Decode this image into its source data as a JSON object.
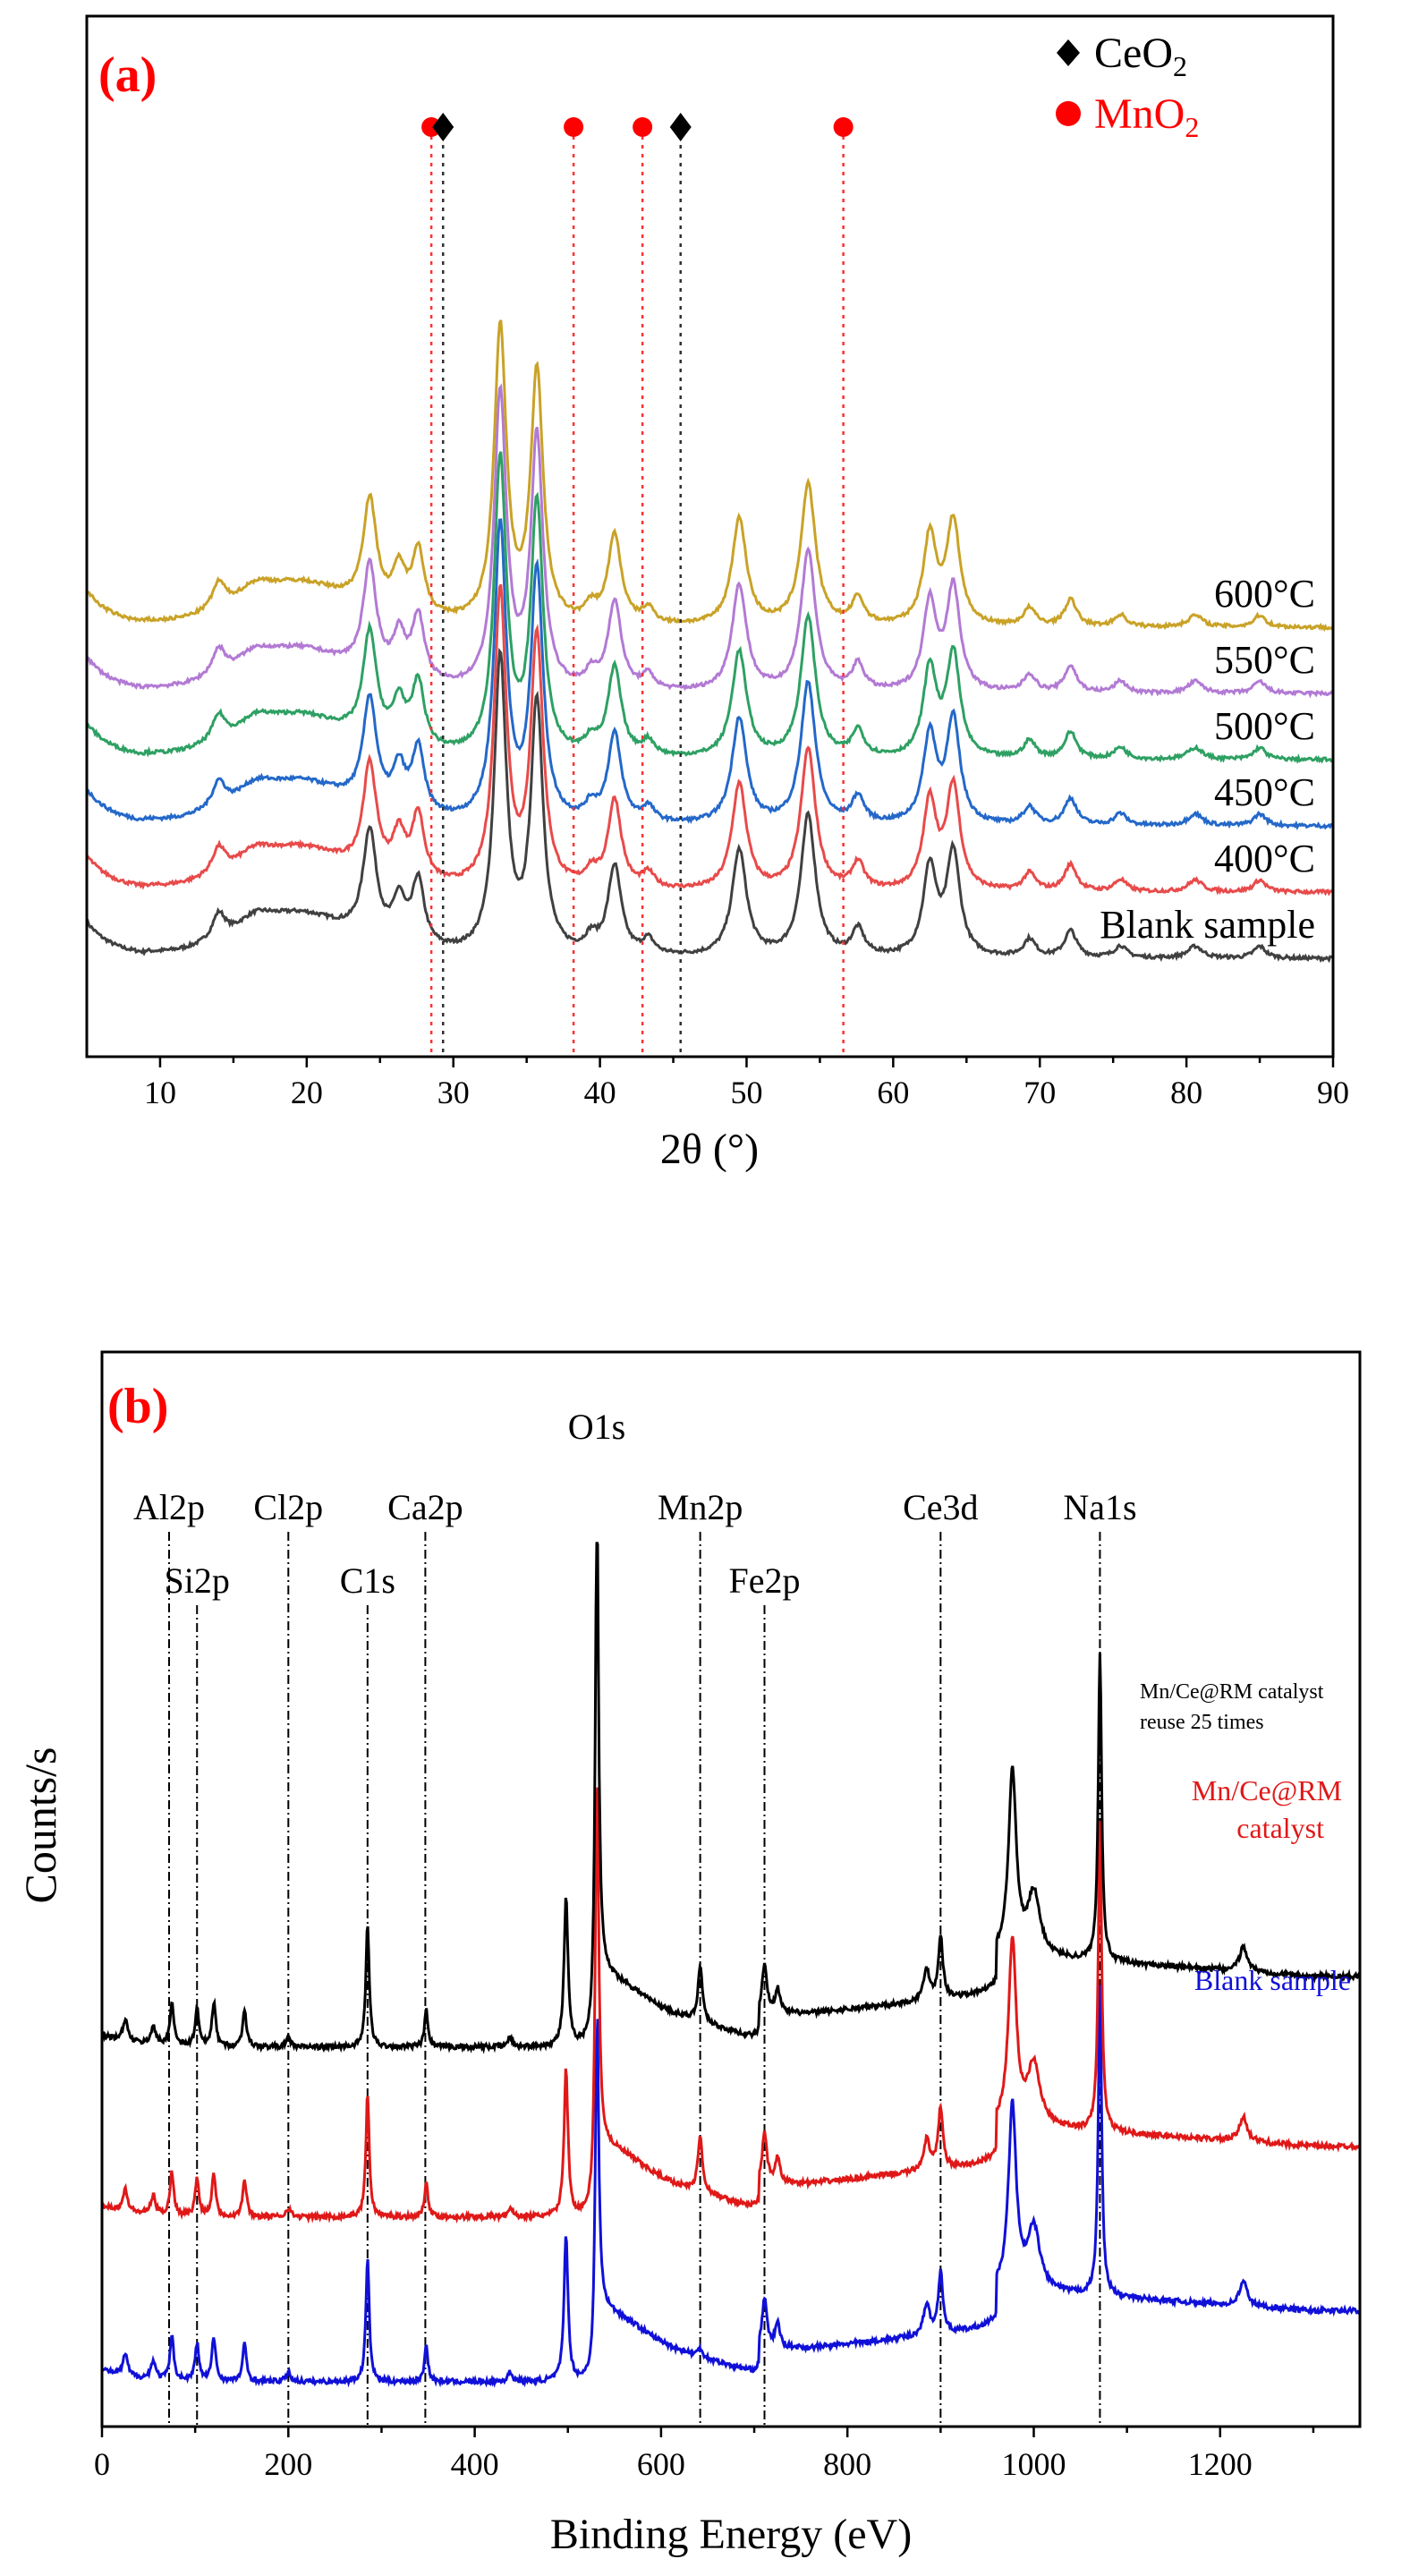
{
  "chart_data": [
    {
      "type": "line",
      "panel_label": "(a)",
      "xlabel": "2θ (°)",
      "ylabel": "",
      "xlim": [
        5,
        90
      ],
      "xticks": [
        10,
        20,
        30,
        40,
        50,
        60,
        70,
        80,
        90
      ],
      "legend": {
        "placement": "top-right",
        "entries": [
          {
            "marker": "diamond",
            "label_main": "CeO",
            "label_sub": "2",
            "color": "#000000"
          },
          {
            "marker": "circle",
            "label_main": "MnO",
            "label_sub": "2",
            "color": "#ff0000"
          }
        ]
      },
      "reference_lines": {
        "CeO2": [
          29.3,
          45.5
        ],
        "MnO2": [
          28.5,
          38.2,
          42.9,
          56.6
        ]
      },
      "peaks": [
        {
          "x": 14.0,
          "h": 0.09,
          "w": 0.55
        },
        {
          "x": 16.5,
          "h": 0.06,
          "w": 1.6
        },
        {
          "x": 19.5,
          "h": 0.06,
          "w": 3.2
        },
        {
          "x": 24.3,
          "h": 0.36,
          "w": 0.55
        },
        {
          "x": 26.3,
          "h": 0.14,
          "w": 0.5
        },
        {
          "x": 27.6,
          "h": 0.22,
          "w": 0.5
        },
        {
          "x": 33.2,
          "h": 1.0,
          "w": 0.5
        },
        {
          "x": 35.7,
          "h": 0.85,
          "w": 0.5
        },
        {
          "x": 39.4,
          "h": 0.05,
          "w": 0.5
        },
        {
          "x": 41.0,
          "h": 0.3,
          "w": 0.55
        },
        {
          "x": 43.3,
          "h": 0.05,
          "w": 0.5
        },
        {
          "x": 49.5,
          "h": 0.36,
          "w": 0.6
        },
        {
          "x": 54.2,
          "h": 0.48,
          "w": 0.6
        },
        {
          "x": 57.6,
          "h": 0.09,
          "w": 0.5
        },
        {
          "x": 62.5,
          "h": 0.3,
          "w": 0.55
        },
        {
          "x": 64.1,
          "h": 0.35,
          "w": 0.55
        },
        {
          "x": 69.3,
          "h": 0.06,
          "w": 0.5
        },
        {
          "x": 72.1,
          "h": 0.09,
          "w": 0.5
        },
        {
          "x": 75.5,
          "h": 0.04,
          "w": 0.5
        },
        {
          "x": 80.6,
          "h": 0.04,
          "w": 0.6
        },
        {
          "x": 85.0,
          "h": 0.04,
          "w": 0.5
        }
      ],
      "series": [
        {
          "name": "Blank sample",
          "color": "#404040",
          "offset": 0
        },
        {
          "name": "400°C",
          "color": "#e84a4a",
          "offset": 1
        },
        {
          "name": "450°C",
          "color": "#2468c9",
          "offset": 2
        },
        {
          "name": "500°C",
          "color": "#2ea063",
          "offset": 3
        },
        {
          "name": "550°C",
          "color": "#b27ad4",
          "offset": 4
        },
        {
          "name": "600°C",
          "color": "#c9a227",
          "offset": 5
        }
      ]
    },
    {
      "type": "line",
      "panel_label": "(b)",
      "xlabel": "Binding Energy (eV)",
      "ylabel": "Counts/s",
      "xlim": [
        0,
        1350
      ],
      "xticks": [
        0,
        200,
        400,
        600,
        800,
        1000,
        1200
      ],
      "reference_lines": [
        {
          "label": "Al2p",
          "x": 72
        },
        {
          "label": "Si2p",
          "x": 102
        },
        {
          "label": "Cl2p",
          "x": 200
        },
        {
          "label": "C1s",
          "x": 285
        },
        {
          "label": "Ca2p",
          "x": 347
        },
        {
          "label": "O1s",
          "x": 531
        },
        {
          "label": "Mn2p",
          "x": 642
        },
        {
          "label": "Fe2p",
          "x": 711
        },
        {
          "label": "Ce3d",
          "x": 900
        },
        {
          "label": "Na1s",
          "x": 1071
        }
      ],
      "peaks": [
        {
          "x": 25,
          "h": 0.035,
          "w": 3
        },
        {
          "x": 55,
          "h": 0.03,
          "w": 3
        },
        {
          "x": 75,
          "h": 0.07,
          "w": 2.5
        },
        {
          "x": 102,
          "h": 0.06,
          "w": 2.5
        },
        {
          "x": 120,
          "h": 0.07,
          "w": 2.5
        },
        {
          "x": 153,
          "h": 0.06,
          "w": 2.5
        },
        {
          "x": 200,
          "h": 0.015,
          "w": 3
        },
        {
          "x": 285,
          "h": 0.2,
          "w": 2.2
        },
        {
          "x": 348,
          "h": 0.06,
          "w": 2.2
        },
        {
          "x": 438,
          "h": 0.015,
          "w": 3
        },
        {
          "x": 498,
          "h": 0.24,
          "w": 2.5
        },
        {
          "x": 531,
          "h": 1.0,
          "w": 2.2
        },
        {
          "x": 642,
          "h": 0.09,
          "w": 3
        },
        {
          "x": 711,
          "h": 0.08,
          "w": 3
        },
        {
          "x": 725,
          "h": 0.04,
          "w": 3
        },
        {
          "x": 885,
          "h": 0.05,
          "w": 4
        },
        {
          "x": 900,
          "h": 0.1,
          "w": 3
        },
        {
          "x": 977,
          "h": 0.3,
          "w": 5
        },
        {
          "x": 1000,
          "h": 0.1,
          "w": 8
        },
        {
          "x": 1071,
          "h": 0.5,
          "w": 2.2
        },
        {
          "x": 1225,
          "h": 0.04,
          "w": 5
        }
      ],
      "series": [
        {
          "name": "Blank sample",
          "color": "#1010d8",
          "offset": 0
        },
        {
          "name_line1": "Mn/Ce@RM",
          "name_line2": "catalyst",
          "color": "#e01818",
          "offset": 1
        },
        {
          "name_line1": "Mn/Ce@RM catalyst",
          "name_line2": "reuse 25 times",
          "color": "#000000",
          "offset": 2
        }
      ]
    }
  ]
}
